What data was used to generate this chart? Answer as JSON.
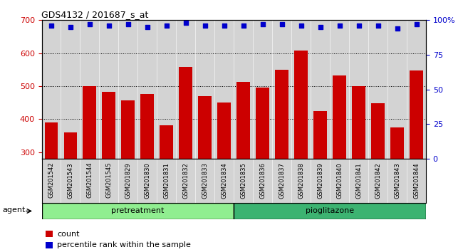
{
  "title": "GDS4132 / 201687_s_at",
  "samples": [
    "GSM201542",
    "GSM201543",
    "GSM201544",
    "GSM201545",
    "GSM201829",
    "GSM201830",
    "GSM201831",
    "GSM201832",
    "GSM201833",
    "GSM201834",
    "GSM201835",
    "GSM201836",
    "GSM201837",
    "GSM201838",
    "GSM201839",
    "GSM201840",
    "GSM201841",
    "GSM201842",
    "GSM201843",
    "GSM201844"
  ],
  "counts": [
    390,
    360,
    500,
    483,
    458,
    477,
    382,
    558,
    470,
    450,
    512,
    495,
    550,
    607,
    425,
    533,
    500,
    448,
    374,
    548
  ],
  "percentile_ranks": [
    96,
    95,
    97,
    96,
    97,
    95,
    96,
    98,
    96,
    96,
    96,
    97,
    97,
    96,
    95,
    96,
    96,
    96,
    94,
    97
  ],
  "pretreatment_count": 10,
  "pioglitazone_count": 10,
  "ylim_left": [
    280,
    700
  ],
  "ylim_right": [
    0,
    100
  ],
  "yticks_left": [
    300,
    400,
    500,
    600,
    700
  ],
  "yticks_right": [
    0,
    25,
    50,
    75,
    100
  ],
  "bar_color": "#cc0000",
  "dot_color": "#0000cc",
  "pretreatment_color": "#90ee90",
  "pioglitazone_color": "#3cb371",
  "bg_color": "#d3d3d3",
  "agent_label": "agent",
  "pretreatment_label": "pretreatment",
  "pioglitazone_label": "pioglitazone",
  "legend_count_label": "count",
  "legend_pct_label": "percentile rank within the sample"
}
